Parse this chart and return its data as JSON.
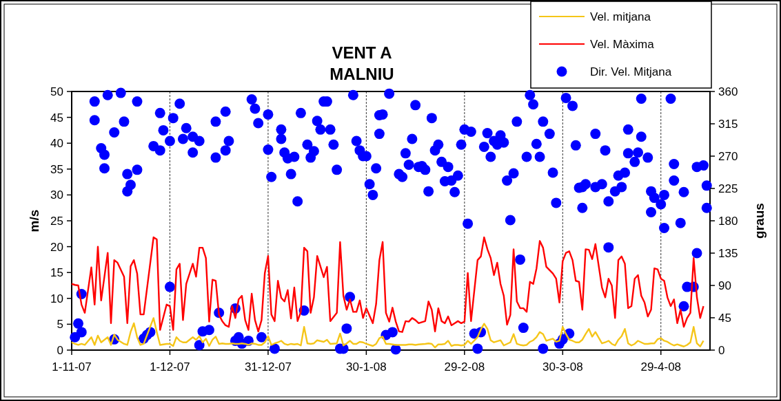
{
  "chart_data": {
    "type": "line",
    "title": "VENT A\nMALNIU",
    "ylabel": "m/s",
    "y2label": "graus",
    "xlim": [
      "2007-11-01",
      "2008-05-14"
    ],
    "xticks": [
      {
        "value": "2007-11-01",
        "label": "1-11-07"
      },
      {
        "value": "2007-12-01",
        "label": "1-12-07"
      },
      {
        "value": "2007-12-31",
        "label": "31-12-07"
      },
      {
        "value": "2008-01-30",
        "label": "30-1-08"
      },
      {
        "value": "2008-02-29",
        "label": "29-2-08"
      },
      {
        "value": "2008-03-30",
        "label": "30-3-08"
      },
      {
        "value": "2008-04-29",
        "label": "29-4-08"
      }
    ],
    "ylim": [
      0,
      50
    ],
    "yticks": [
      0,
      5,
      10,
      15,
      20,
      25,
      30,
      35,
      40,
      45,
      50
    ],
    "y2lim": [
      0,
      360
    ],
    "y2ticks": [
      0,
      45,
      90,
      135,
      180,
      225,
      270,
      315,
      360
    ],
    "grid": "x",
    "legend": "top right",
    "x": [
      "2007-11-01",
      "2007-11-02",
      "2007-11-03",
      "2007-11-04",
      "2007-11-05",
      "2007-11-07",
      "2007-11-08",
      "2007-11-09",
      "2007-11-10",
      "2007-11-12",
      "2007-11-13",
      "2007-11-14",
      "2007-11-15",
      "2007-11-17",
      "2007-11-18",
      "2007-11-19",
      "2007-11-20",
      "2007-11-21",
      "2007-11-22",
      "2007-11-23",
      "2007-11-26",
      "2007-11-27",
      "2007-11-28",
      "2007-11-30",
      "2007-12-01",
      "2007-12-02",
      "2007-12-03",
      "2007-12-04",
      "2007-12-05",
      "2007-12-06",
      "2007-12-08",
      "2007-12-09",
      "2007-12-10",
      "2007-12-11",
      "2007-12-12",
      "2007-12-13",
      "2007-12-14",
      "2007-12-15",
      "2007-12-16",
      "2007-12-17",
      "2007-12-18",
      "2007-12-19",
      "2007-12-20",
      "2007-12-21",
      "2007-12-22",
      "2007-12-23",
      "2007-12-24",
      "2007-12-25",
      "2007-12-26",
      "2007-12-27",
      "2007-12-28",
      "2007-12-29",
      "2007-12-30",
      "2007-12-31",
      "2008-01-01",
      "2008-01-02",
      "2008-01-03",
      "2008-01-04",
      "2008-01-05",
      "2008-01-06",
      "2008-01-07",
      "2008-01-08",
      "2008-01-09",
      "2008-01-10",
      "2008-01-11",
      "2008-01-12",
      "2008-01-13",
      "2008-01-14",
      "2008-01-15",
      "2008-01-17",
      "2008-01-18",
      "2008-01-19",
      "2008-01-21",
      "2008-01-22",
      "2008-01-23",
      "2008-01-24",
      "2008-01-25",
      "2008-01-26",
      "2008-01-27",
      "2008-01-28",
      "2008-01-29",
      "2008-01-30",
      "2008-02-01",
      "2008-02-02",
      "2008-02-03",
      "2008-02-04",
      "2008-02-05",
      "2008-02-06",
      "2008-02-07",
      "2008-02-08",
      "2008-02-09",
      "2008-02-10",
      "2008-02-11",
      "2008-02-12",
      "2008-02-13",
      "2008-02-14",
      "2008-02-15",
      "2008-02-17",
      "2008-02-18",
      "2008-02-19",
      "2008-02-20",
      "2008-02-21",
      "2008-02-22",
      "2008-02-23",
      "2008-02-24",
      "2008-02-25",
      "2008-02-26",
      "2008-02-27",
      "2008-02-28",
      "2008-02-29",
      "2008-03-01",
      "2008-03-02",
      "2008-03-04",
      "2008-03-05",
      "2008-03-06",
      "2008-03-07",
      "2008-03-08",
      "2008-03-09",
      "2008-03-10",
      "2008-03-11",
      "2008-03-12",
      "2008-03-13",
      "2008-03-14",
      "2008-03-15",
      "2008-03-16",
      "2008-03-17",
      "2008-03-18",
      "2008-03-19",
      "2008-03-20",
      "2008-03-21",
      "2008-03-22",
      "2008-03-23",
      "2008-03-24",
      "2008-03-25",
      "2008-03-27",
      "2008-03-28",
      "2008-03-29",
      "2008-03-30",
      "2008-03-31",
      "2008-04-01",
      "2008-04-02",
      "2008-04-03",
      "2008-04-04",
      "2008-04-05",
      "2008-04-06",
      "2008-04-07",
      "2008-04-08",
      "2008-04-09",
      "2008-04-11",
      "2008-04-12",
      "2008-04-13",
      "2008-04-14",
      "2008-04-15",
      "2008-04-16",
      "2008-04-17",
      "2008-04-18",
      "2008-04-19",
      "2008-04-20",
      "2008-04-21",
      "2008-04-22",
      "2008-04-23",
      "2008-04-24",
      "2008-04-25",
      "2008-04-26",
      "2008-04-27",
      "2008-04-28",
      "2008-04-29",
      "2008-04-30",
      "2008-05-01",
      "2008-05-02",
      "2008-05-03",
      "2008-05-04",
      "2008-05-05",
      "2008-05-06",
      "2008-05-07",
      "2008-05-08",
      "2008-05-09",
      "2008-05-10",
      "2008-05-11",
      "2008-05-12"
    ],
    "series": [
      {
        "name": "Vel. mitjana",
        "color": "#f5c518",
        "marker": "none",
        "values": [
          1.5,
          1.2,
          1.0,
          1.2,
          1.0,
          2.5,
          1.0,
          2.8,
          1.5,
          2.5,
          1.0,
          3.0,
          2.0,
          1.2,
          1.0,
          3.5,
          5.2,
          2.5,
          1.0,
          1.2,
          6.2,
          3.5,
          1.0,
          1.2,
          1.2,
          0.8,
          2.5,
          1.8,
          1.5,
          1.5,
          2.5,
          2.0,
          2.7,
          1.5,
          2.2,
          0.8,
          2.0,
          2.6,
          1.2,
          1.3,
          1.2,
          1.2,
          1.3,
          1.2,
          1.2,
          1.3,
          1.2,
          1.0,
          1.3,
          1.2,
          1.0,
          1.0,
          1.5,
          2.7,
          1.0,
          1.3,
          1.5,
          1.8,
          1.2,
          1.0,
          1.2,
          1.1,
          1.2,
          0.9,
          4.5,
          1.3,
          1.2,
          1.3,
          1.9,
          1.6,
          2.0,
          1.2,
          1.3,
          3.2,
          0.9,
          1.3,
          1.8,
          1.2,
          1.2,
          1.6,
          1.5,
          1.2,
          0.8,
          1.2,
          2.3,
          2.6,
          1.2,
          1.2,
          1.1,
          1.0,
          1.0,
          1.0,
          1.0,
          1.1,
          1.1,
          1.0,
          1.1,
          1.2,
          1.3,
          1.2,
          0.5,
          1.1,
          1.1,
          1.2,
          1.8,
          0.8,
          1.0,
          1.0,
          0.9,
          1.0,
          1.8,
          1.2,
          2.5,
          4.0,
          5.1,
          4.1,
          1.9,
          1.5,
          1.7,
          1.9,
          0.9,
          1.2,
          1.5,
          3.1,
          1.2,
          1.0,
          0.9,
          1.0,
          1.6,
          1.9,
          2.5,
          3.5,
          3.1,
          1.8,
          2.2,
          1.6,
          1.8,
          4.5,
          3.1,
          2.0,
          1.8,
          1.5,
          1.5,
          2.0,
          3.1,
          4.1,
          2.6,
          3.5,
          1.3,
          1.5,
          1.8,
          1.2,
          0.9,
          2.0,
          2.7,
          4.1,
          1.3,
          0.9,
          1.2,
          1.8,
          1.5,
          1.2,
          1.2,
          1.3,
          1.3,
          2.1,
          2.3,
          1.8,
          1.6,
          1.2,
          0.9,
          1.1,
          0.9,
          0.7,
          1.0,
          1.5,
          4.5,
          1.3,
          0.7,
          1.8
        ]
      },
      {
        "name": "Vel. Màxima",
        "color": "#ff0000",
        "marker": "none",
        "values": [
          12.8,
          12.6,
          12.5,
          8.8,
          7.2,
          16,
          8.8,
          20,
          9.6,
          18.8,
          5.2,
          17.4,
          16.9,
          14.2,
          5.2,
          16.2,
          17.4,
          14.8,
          6.9,
          6.9,
          21.8,
          21.4,
          3.9,
          8.8,
          8.5,
          3.9,
          15.6,
          16.7,
          5.8,
          12.8,
          16.7,
          14.2,
          19.8,
          19.8,
          17.8,
          5.5,
          13.6,
          13.4,
          6.8,
          5.6,
          4.8,
          4.5,
          8.5,
          6.2,
          9.8,
          10.5,
          5.8,
          3.9,
          10.9,
          5.8,
          3.6,
          5.8,
          14.9,
          18.2,
          6.9,
          5.6,
          13.4,
          10.1,
          9.4,
          11.6,
          6.1,
          12.1,
          5.6,
          7.4,
          19.8,
          19.1,
          7.2,
          10.2,
          18.2,
          14.1,
          16.1,
          5.6,
          7.2,
          20.9,
          10.5,
          7.8,
          9.8,
          7.4,
          7.4,
          9.6,
          6.2,
          8.1,
          5.2,
          8.9,
          17.4,
          20.9,
          7.2,
          5.5,
          8.2,
          5.5,
          3.6,
          3.5,
          5.6,
          5.5,
          6.2,
          5.8,
          5.2,
          5.6,
          9.4,
          7.8,
          3.6,
          8.1,
          5.6,
          5.2,
          6.5,
          4.8,
          5.2,
          5.6,
          5.2,
          5.5,
          14.9,
          5.6,
          17.4,
          18.1,
          21.8,
          19.5,
          17.8,
          14.5,
          16.9,
          12.8,
          10.5,
          4.9,
          6.8,
          19.5,
          9.4,
          8.1,
          8.1,
          7.4,
          13.2,
          12.8,
          15.8,
          21.1,
          19.8,
          16.1,
          14.8,
          13.8,
          9.2,
          17.2,
          18.8,
          19.1,
          17.4,
          13.4,
          13.2,
          7.8,
          19.5,
          19.4,
          17.6,
          20.5,
          12.1,
          10.2,
          13.8,
          12.5,
          6.2,
          17.4,
          18.1,
          16.7,
          8.1,
          8.5,
          13.8,
          14.5,
          10.5,
          9.2,
          6.5,
          7.8,
          15.8,
          15.6,
          13.8,
          13.4,
          10.2,
          8.5,
          9.8,
          5.2,
          7.8,
          4.5,
          6.2,
          7.2,
          17.8,
          10.2,
          6.2,
          8.5
        ]
      },
      {
        "name": "Dir. Vel. Mitjana",
        "type": "scatter",
        "axis": "y2",
        "color": "#0000ff",
        "marker": "circle",
        "x": [
          "2007-11-02",
          "2007-11-03",
          "2007-11-04",
          "2007-11-04",
          "2007-11-08",
          "2007-11-08",
          "2007-11-10",
          "2007-11-11",
          "2007-11-11",
          "2007-11-12",
          "2007-11-14",
          "2007-11-14",
          "2007-11-16",
          "2007-11-17",
          "2007-11-18",
          "2007-11-18",
          "2007-11-19",
          "2007-11-21",
          "2007-11-21",
          "2007-11-23",
          "2007-11-24",
          "2007-11-25",
          "2007-11-26",
          "2007-11-28",
          "2007-11-28",
          "2007-11-29",
          "2007-12-01",
          "2007-12-01",
          "2007-12-02",
          "2007-12-04",
          "2007-12-05",
          "2007-12-06",
          "2007-12-08",
          "2007-12-08",
          "2007-12-10",
          "2007-12-10",
          "2007-12-11",
          "2007-12-13",
          "2007-12-15",
          "2007-12-15",
          "2007-12-16",
          "2007-12-18",
          "2007-12-18",
          "2007-12-19",
          "2007-12-21",
          "2007-12-21",
          "2007-12-22",
          "2007-12-23",
          "2007-12-25",
          "2007-12-26",
          "2007-12-27",
          "2007-12-28",
          "2007-12-29",
          "2007-12-31",
          "2007-12-31",
          "2008-01-01",
          "2008-01-02",
          "2008-01-04",
          "2008-01-04",
          "2008-01-05",
          "2008-01-06",
          "2008-01-07",
          "2008-01-08",
          "2008-01-09",
          "2008-01-10",
          "2008-01-11",
          "2008-01-12",
          "2008-01-13",
          "2008-01-14",
          "2008-01-15",
          "2008-01-16",
          "2008-01-17",
          "2008-01-18",
          "2008-01-19",
          "2008-01-20",
          "2008-01-21",
          "2008-01-22",
          "2008-01-23",
          "2008-01-24",
          "2008-01-25",
          "2008-01-26",
          "2008-01-27",
          "2008-01-28",
          "2008-01-29",
          "2008-01-30",
          "2008-01-31",
          "2008-02-01",
          "2008-02-02",
          "2008-02-03",
          "2008-02-03",
          "2008-02-04",
          "2008-02-05",
          "2008-02-06",
          "2008-02-07",
          "2008-02-08",
          "2008-02-09",
          "2008-02-10",
          "2008-02-11",
          "2008-02-12",
          "2008-02-13",
          "2008-02-14",
          "2008-02-15",
          "2008-02-16",
          "2008-02-17",
          "2008-02-18",
          "2008-02-19",
          "2008-02-20",
          "2008-02-21",
          "2008-02-22",
          "2008-02-23",
          "2008-02-24",
          "2008-02-25",
          "2008-02-26",
          "2008-02-27",
          "2008-02-28",
          "2008-02-29",
          "2008-03-01",
          "2008-03-02",
          "2008-03-03",
          "2008-03-04",
          "2008-03-05",
          "2008-03-06",
          "2008-03-07",
          "2008-03-08",
          "2008-03-09",
          "2008-03-10",
          "2008-03-11",
          "2008-03-12",
          "2008-03-13",
          "2008-03-14",
          "2008-03-15",
          "2008-03-16",
          "2008-03-17",
          "2008-03-18",
          "2008-03-19",
          "2008-03-20",
          "2008-03-21",
          "2008-03-22",
          "2008-03-23",
          "2008-03-24",
          "2008-03-24",
          "2008-03-26",
          "2008-03-27",
          "2008-03-28",
          "2008-03-29",
          "2008-03-30",
          "2008-03-31",
          "2008-04-01",
          "2008-04-02",
          "2008-04-03",
          "2008-04-04",
          "2008-04-05",
          "2008-04-05",
          "2008-04-06",
          "2008-04-09",
          "2008-04-09",
          "2008-04-11",
          "2008-04-12",
          "2008-04-13",
          "2008-04-13",
          "2008-04-15",
          "2008-04-16",
          "2008-04-17",
          "2008-04-18",
          "2008-04-19",
          "2008-04-19",
          "2008-04-21",
          "2008-04-22",
          "2008-04-23",
          "2008-04-23",
          "2008-04-25",
          "2008-04-26",
          "2008-04-26",
          "2008-04-27",
          "2008-04-29",
          "2008-04-30",
          "2008-04-30",
          "2008-05-02",
          "2008-05-03",
          "2008-05-03",
          "2008-05-05",
          "2008-05-06",
          "2008-05-06",
          "2008-05-07",
          "2008-05-09",
          "2008-05-10",
          "2008-05-10",
          "2008-05-12",
          "2008-05-13",
          "2008-05-13"
        ],
        "values": [
          18,
          37,
          78,
          25,
          320,
          346,
          281,
          272,
          253,
          355,
          303,
          15,
          358,
          318,
          221,
          245,
          230,
          251,
          346,
          16,
          21,
          25,
          284,
          330,
          278,
          306,
          88,
          291,
          323,
          343,
          294,
          309,
          275,
          297,
          291,
          7,
          26,
          28,
          318,
          268,
          52,
          332,
          278,
          291,
          58,
          13,
          18,
          9,
          13,
          349,
          336,
          316,
          18,
          328,
          279,
          241,
          2,
          307,
          294,
          275,
          267,
          245,
          269,
          207,
          330,
          55,
          286,
          268,
          277,
          319,
          307,
          346,
          346,
          307,
          286,
          251,
          2,
          2,
          30,
          74,
          355,
          291,
          278,
          270,
          270,
          231,
          216,
          253,
          327,
          301,
          328,
          21,
          357,
          25,
          1,
          245,
          241,
          274,
          258,
          294,
          341,
          255,
          256,
          251,
          221,
          323,
          278,
          286,
          262,
          235,
          255,
          236,
          220,
          243,
          286,
          307,
          176,
          304,
          23,
          2,
          25,
          283,
          302,
          269,
          291,
          286,
          299,
          289,
          236,
          181,
          246,
          318,
          126,
          31,
          269,
          355,
          342,
          287,
          269,
          2,
          318,
          301,
          247,
          205,
          9,
          15,
          351,
          23,
          340,
          285,
          226,
          227,
          198,
          231,
          227,
          301,
          231,
          278,
          143,
          207,
          221,
          243,
          227,
          247,
          307,
          274,
          262,
          275,
          350,
          297,
          268,
          221,
          192,
          212,
          203,
          216,
          170,
          350,
          259,
          236,
          177,
          220,
          61,
          88,
          88,
          135,
          255,
          257,
          229,
          198
        ]
      }
    ]
  }
}
